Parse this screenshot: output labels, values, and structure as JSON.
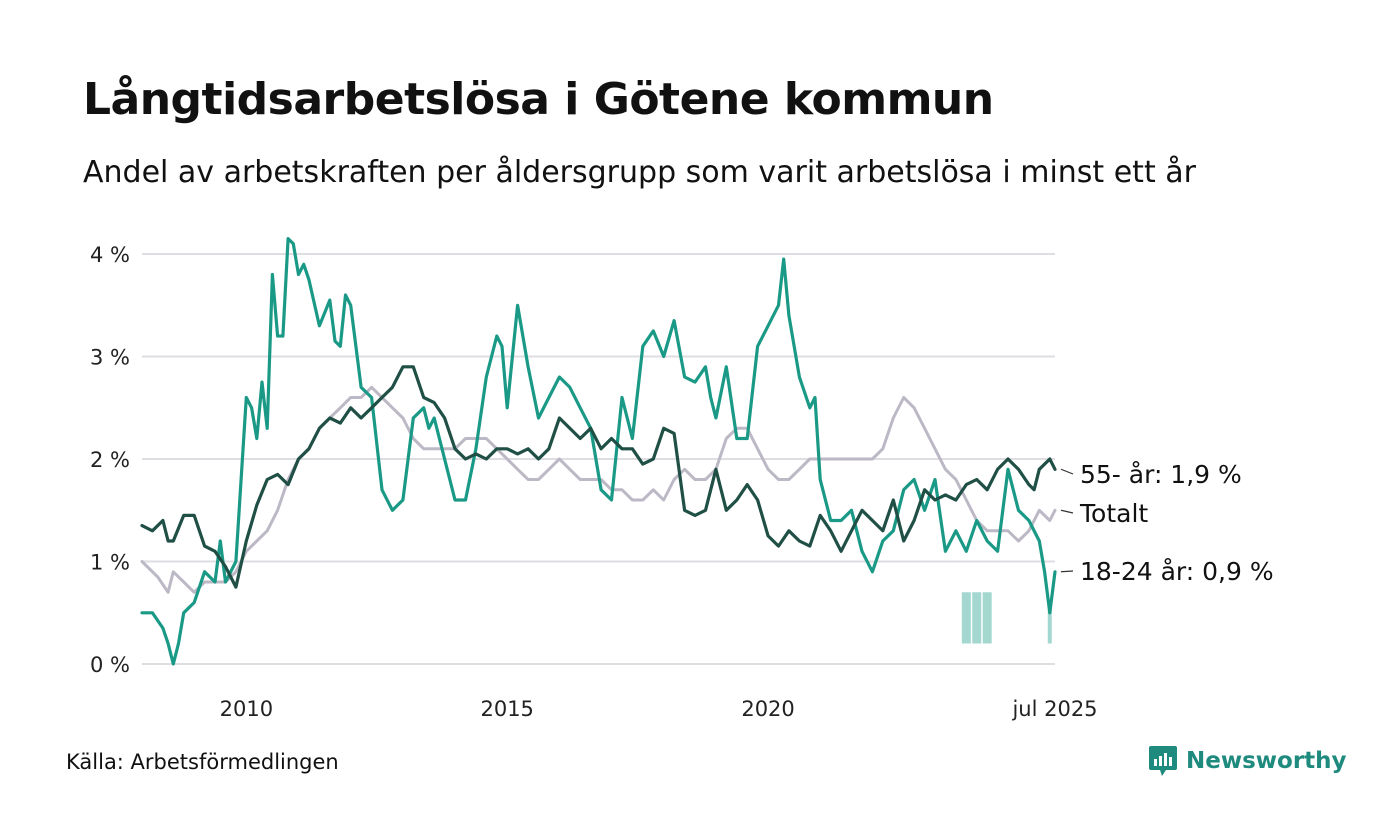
{
  "title": "Långtidsarbetslösa i Götene kommun",
  "subtitle": "Andel av arbetskraften per åldersgrupp som varit arbetslösa i minst ett år",
  "source": "Källa: Arbetsförmedlingen",
  "brand": {
    "name": "Newsworthy",
    "icon": "newsworthy-logo-icon",
    "color": "#1f8a7e"
  },
  "chart_data": {
    "type": "line",
    "ylim": [
      0,
      4.1
    ],
    "y_ticks": [
      0,
      1,
      2,
      3,
      4
    ],
    "y_tick_labels": [
      "0 %",
      "1 %",
      "2 %",
      "3 %",
      "4 %"
    ],
    "x_range": [
      2008.0,
      2025.5
    ],
    "x_ticks": [
      2010,
      2015,
      2020,
      2025.5
    ],
    "x_tick_labels": [
      "2010",
      "2015",
      "2020",
      "jul 2025"
    ],
    "grid": true,
    "legend": "end-labels",
    "uncertainty_band": {
      "series": "18-24 år",
      "x": [
        2023.8,
        2024.0,
        2024.2,
        2024.4,
        2025.4
      ],
      "lower": [
        0.2,
        0.2,
        0.2,
        0.4,
        0.2
      ],
      "upper": [
        0.7,
        0.7,
        0.7,
        0.4,
        0.6
      ]
    },
    "series": [
      {
        "name": "Totalt",
        "end_label": "Totalt",
        "color": "#bdb8c6",
        "width": 3,
        "points": [
          [
            2008.0,
            1.0
          ],
          [
            2008.3,
            0.85
          ],
          [
            2008.5,
            0.7
          ],
          [
            2008.6,
            0.9
          ],
          [
            2008.8,
            0.8
          ],
          [
            2009.0,
            0.7
          ],
          [
            2009.2,
            0.8
          ],
          [
            2009.4,
            0.8
          ],
          [
            2009.6,
            0.8
          ],
          [
            2009.8,
            0.9
          ],
          [
            2010.0,
            1.1
          ],
          [
            2010.2,
            1.2
          ],
          [
            2010.4,
            1.3
          ],
          [
            2010.6,
            1.5
          ],
          [
            2010.8,
            1.8
          ],
          [
            2011.0,
            2.0
          ],
          [
            2011.2,
            2.1
          ],
          [
            2011.4,
            2.3
          ],
          [
            2011.6,
            2.4
          ],
          [
            2011.8,
            2.5
          ],
          [
            2012.0,
            2.6
          ],
          [
            2012.2,
            2.6
          ],
          [
            2012.4,
            2.7
          ],
          [
            2012.6,
            2.6
          ],
          [
            2012.8,
            2.5
          ],
          [
            2013.0,
            2.4
          ],
          [
            2013.2,
            2.2
          ],
          [
            2013.4,
            2.1
          ],
          [
            2013.6,
            2.1
          ],
          [
            2013.8,
            2.1
          ],
          [
            2014.0,
            2.1
          ],
          [
            2014.2,
            2.2
          ],
          [
            2014.4,
            2.2
          ],
          [
            2014.6,
            2.2
          ],
          [
            2014.8,
            2.1
          ],
          [
            2015.0,
            2.0
          ],
          [
            2015.2,
            1.9
          ],
          [
            2015.4,
            1.8
          ],
          [
            2015.6,
            1.8
          ],
          [
            2015.8,
            1.9
          ],
          [
            2016.0,
            2.0
          ],
          [
            2016.2,
            1.9
          ],
          [
            2016.4,
            1.8
          ],
          [
            2016.6,
            1.8
          ],
          [
            2016.8,
            1.8
          ],
          [
            2017.0,
            1.7
          ],
          [
            2017.2,
            1.7
          ],
          [
            2017.4,
            1.6
          ],
          [
            2017.6,
            1.6
          ],
          [
            2017.8,
            1.7
          ],
          [
            2018.0,
            1.6
          ],
          [
            2018.2,
            1.8
          ],
          [
            2018.4,
            1.9
          ],
          [
            2018.6,
            1.8
          ],
          [
            2018.8,
            1.8
          ],
          [
            2019.0,
            1.9
          ],
          [
            2019.2,
            2.2
          ],
          [
            2019.4,
            2.3
          ],
          [
            2019.6,
            2.3
          ],
          [
            2019.8,
            2.1
          ],
          [
            2020.0,
            1.9
          ],
          [
            2020.2,
            1.8
          ],
          [
            2020.4,
            1.8
          ],
          [
            2020.6,
            1.9
          ],
          [
            2020.8,
            2.0
          ],
          [
            2021.0,
            2.0
          ],
          [
            2021.2,
            2.0
          ],
          [
            2021.4,
            2.0
          ],
          [
            2021.6,
            2.0
          ],
          [
            2021.8,
            2.0
          ],
          [
            2022.0,
            2.0
          ],
          [
            2022.2,
            2.1
          ],
          [
            2022.4,
            2.4
          ],
          [
            2022.6,
            2.6
          ],
          [
            2022.8,
            2.5
          ],
          [
            2023.0,
            2.3
          ],
          [
            2023.2,
            2.1
          ],
          [
            2023.4,
            1.9
          ],
          [
            2023.6,
            1.8
          ],
          [
            2023.8,
            1.6
          ],
          [
            2024.0,
            1.4
          ],
          [
            2024.2,
            1.3
          ],
          [
            2024.4,
            1.3
          ],
          [
            2024.6,
            1.3
          ],
          [
            2024.8,
            1.2
          ],
          [
            2025.0,
            1.3
          ],
          [
            2025.2,
            1.5
          ],
          [
            2025.4,
            1.4
          ],
          [
            2025.5,
            1.5
          ]
        ]
      },
      {
        "name": "18-24 år",
        "end_label": "18-24 år: 0,9 %",
        "color": "#1a9a86",
        "width": 3.2,
        "points": [
          [
            2008.0,
            0.5
          ],
          [
            2008.2,
            0.5
          ],
          [
            2008.4,
            0.35
          ],
          [
            2008.5,
            0.2
          ],
          [
            2008.6,
            0.0
          ],
          [
            2008.7,
            0.2
          ],
          [
            2008.8,
            0.5
          ],
          [
            2009.0,
            0.6
          ],
          [
            2009.2,
            0.9
          ],
          [
            2009.4,
            0.8
          ],
          [
            2009.5,
            1.2
          ],
          [
            2009.6,
            0.8
          ],
          [
            2009.8,
            1.0
          ],
          [
            2010.0,
            2.6
          ],
          [
            2010.1,
            2.5
          ],
          [
            2010.2,
            2.2
          ],
          [
            2010.3,
            2.75
          ],
          [
            2010.4,
            2.3
          ],
          [
            2010.5,
            3.8
          ],
          [
            2010.6,
            3.2
          ],
          [
            2010.7,
            3.2
          ],
          [
            2010.8,
            4.15
          ],
          [
            2010.9,
            4.1
          ],
          [
            2011.0,
            3.8
          ],
          [
            2011.1,
            3.9
          ],
          [
            2011.2,
            3.75
          ],
          [
            2011.4,
            3.3
          ],
          [
            2011.6,
            3.55
          ],
          [
            2011.7,
            3.15
          ],
          [
            2011.8,
            3.1
          ],
          [
            2011.9,
            3.6
          ],
          [
            2012.0,
            3.5
          ],
          [
            2012.2,
            2.7
          ],
          [
            2012.4,
            2.6
          ],
          [
            2012.6,
            1.7
          ],
          [
            2012.8,
            1.5
          ],
          [
            2013.0,
            1.6
          ],
          [
            2013.2,
            2.4
          ],
          [
            2013.4,
            2.5
          ],
          [
            2013.5,
            2.3
          ],
          [
            2013.6,
            2.4
          ],
          [
            2013.8,
            2.0
          ],
          [
            2014.0,
            1.6
          ],
          [
            2014.2,
            1.6
          ],
          [
            2014.4,
            2.1
          ],
          [
            2014.6,
            2.8
          ],
          [
            2014.8,
            3.2
          ],
          [
            2014.9,
            3.1
          ],
          [
            2015.0,
            2.5
          ],
          [
            2015.2,
            3.5
          ],
          [
            2015.4,
            2.9
          ],
          [
            2015.6,
            2.4
          ],
          [
            2015.8,
            2.6
          ],
          [
            2016.0,
            2.8
          ],
          [
            2016.2,
            2.7
          ],
          [
            2016.4,
            2.5
          ],
          [
            2016.6,
            2.3
          ],
          [
            2016.8,
            1.7
          ],
          [
            2017.0,
            1.6
          ],
          [
            2017.2,
            2.6
          ],
          [
            2017.4,
            2.2
          ],
          [
            2017.6,
            3.1
          ],
          [
            2017.8,
            3.25
          ],
          [
            2018.0,
            3.0
          ],
          [
            2018.2,
            3.35
          ],
          [
            2018.4,
            2.8
          ],
          [
            2018.6,
            2.75
          ],
          [
            2018.8,
            2.9
          ],
          [
            2018.9,
            2.6
          ],
          [
            2019.0,
            2.4
          ],
          [
            2019.2,
            2.9
          ],
          [
            2019.4,
            2.2
          ],
          [
            2019.6,
            2.2
          ],
          [
            2019.8,
            3.1
          ],
          [
            2020.0,
            3.3
          ],
          [
            2020.2,
            3.5
          ],
          [
            2020.3,
            3.95
          ],
          [
            2020.4,
            3.4
          ],
          [
            2020.6,
            2.8
          ],
          [
            2020.8,
            2.5
          ],
          [
            2020.9,
            2.6
          ],
          [
            2021.0,
            1.8
          ],
          [
            2021.2,
            1.4
          ],
          [
            2021.4,
            1.4
          ],
          [
            2021.6,
            1.5
          ],
          [
            2021.8,
            1.1
          ],
          [
            2022.0,
            0.9
          ],
          [
            2022.2,
            1.2
          ],
          [
            2022.4,
            1.3
          ],
          [
            2022.6,
            1.7
          ],
          [
            2022.8,
            1.8
          ],
          [
            2023.0,
            1.5
          ],
          [
            2023.2,
            1.8
          ],
          [
            2023.4,
            1.1
          ],
          [
            2023.6,
            1.3
          ],
          [
            2023.8,
            1.1
          ],
          [
            2024.0,
            1.4
          ],
          [
            2024.2,
            1.2
          ],
          [
            2024.4,
            1.1
          ],
          [
            2024.6,
            1.9
          ],
          [
            2024.8,
            1.5
          ],
          [
            2025.0,
            1.4
          ],
          [
            2025.2,
            1.2
          ],
          [
            2025.3,
            0.9
          ],
          [
            2025.4,
            0.5
          ],
          [
            2025.5,
            0.9
          ]
        ]
      },
      {
        "name": "55- år",
        "end_label": "55- år: 1,9 %",
        "color": "#1f4f45",
        "width": 3.2,
        "points": [
          [
            2008.0,
            1.35
          ],
          [
            2008.2,
            1.3
          ],
          [
            2008.4,
            1.4
          ],
          [
            2008.5,
            1.2
          ],
          [
            2008.6,
            1.2
          ],
          [
            2008.8,
            1.45
          ],
          [
            2009.0,
            1.45
          ],
          [
            2009.2,
            1.15
          ],
          [
            2009.4,
            1.1
          ],
          [
            2009.6,
            0.95
          ],
          [
            2009.8,
            0.75
          ],
          [
            2010.0,
            1.2
          ],
          [
            2010.2,
            1.55
          ],
          [
            2010.4,
            1.8
          ],
          [
            2010.6,
            1.85
          ],
          [
            2010.8,
            1.75
          ],
          [
            2011.0,
            2.0
          ],
          [
            2011.2,
            2.1
          ],
          [
            2011.4,
            2.3
          ],
          [
            2011.6,
            2.4
          ],
          [
            2011.8,
            2.35
          ],
          [
            2012.0,
            2.5
          ],
          [
            2012.2,
            2.4
          ],
          [
            2012.4,
            2.5
          ],
          [
            2012.6,
            2.6
          ],
          [
            2012.8,
            2.7
          ],
          [
            2013.0,
            2.9
          ],
          [
            2013.2,
            2.9
          ],
          [
            2013.4,
            2.6
          ],
          [
            2013.6,
            2.55
          ],
          [
            2013.8,
            2.4
          ],
          [
            2014.0,
            2.1
          ],
          [
            2014.2,
            2.0
          ],
          [
            2014.4,
            2.05
          ],
          [
            2014.6,
            2.0
          ],
          [
            2014.8,
            2.1
          ],
          [
            2015.0,
            2.1
          ],
          [
            2015.2,
            2.05
          ],
          [
            2015.4,
            2.1
          ],
          [
            2015.6,
            2.0
          ],
          [
            2015.8,
            2.1
          ],
          [
            2016.0,
            2.4
          ],
          [
            2016.2,
            2.3
          ],
          [
            2016.4,
            2.2
          ],
          [
            2016.6,
            2.3
          ],
          [
            2016.8,
            2.1
          ],
          [
            2017.0,
            2.2
          ],
          [
            2017.2,
            2.1
          ],
          [
            2017.4,
            2.1
          ],
          [
            2017.6,
            1.95
          ],
          [
            2017.8,
            2.0
          ],
          [
            2018.0,
            2.3
          ],
          [
            2018.2,
            2.25
          ],
          [
            2018.4,
            1.5
          ],
          [
            2018.6,
            1.45
          ],
          [
            2018.8,
            1.5
          ],
          [
            2019.0,
            1.9
          ],
          [
            2019.2,
            1.5
          ],
          [
            2019.4,
            1.6
          ],
          [
            2019.6,
            1.75
          ],
          [
            2019.8,
            1.6
          ],
          [
            2020.0,
            1.25
          ],
          [
            2020.2,
            1.15
          ],
          [
            2020.4,
            1.3
          ],
          [
            2020.6,
            1.2
          ],
          [
            2020.8,
            1.15
          ],
          [
            2021.0,
            1.45
          ],
          [
            2021.2,
            1.3
          ],
          [
            2021.4,
            1.1
          ],
          [
            2021.6,
            1.3
          ],
          [
            2021.8,
            1.5
          ],
          [
            2022.0,
            1.4
          ],
          [
            2022.2,
            1.3
          ],
          [
            2022.4,
            1.6
          ],
          [
            2022.6,
            1.2
          ],
          [
            2022.8,
            1.4
          ],
          [
            2023.0,
            1.7
          ],
          [
            2023.2,
            1.6
          ],
          [
            2023.4,
            1.65
          ],
          [
            2023.6,
            1.6
          ],
          [
            2023.8,
            1.75
          ],
          [
            2024.0,
            1.8
          ],
          [
            2024.2,
            1.7
          ],
          [
            2024.4,
            1.9
          ],
          [
            2024.6,
            2.0
          ],
          [
            2024.8,
            1.9
          ],
          [
            2025.0,
            1.75
          ],
          [
            2025.1,
            1.7
          ],
          [
            2025.2,
            1.9
          ],
          [
            2025.4,
            2.0
          ],
          [
            2025.5,
            1.9
          ]
        ]
      }
    ]
  }
}
